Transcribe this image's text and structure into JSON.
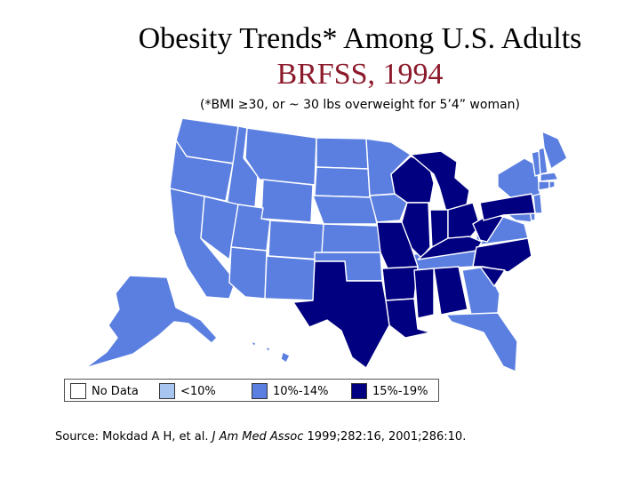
{
  "title": {
    "line1": "Obesity Trends* Among U.S. Adults",
    "line2": "BRFSS, 1994"
  },
  "subtitle": "(*BMI ≥30, or ~ 30 lbs overweight for 5’4” woman)",
  "colors": {
    "no_data": "#ffffff",
    "lt10": "#a8c4f0",
    "p10_14": "#5b7fe0",
    "p15_19": "#000080",
    "border": "#ffffff"
  },
  "legend": [
    {
      "label": "No Data",
      "color": "#ffffff"
    },
    {
      "label": "<10%",
      "color": "#a8c4f0"
    },
    {
      "label": "10%-14%",
      "color": "#5b7fe0"
    },
    {
      "label": "15%-19%",
      "color": "#000080"
    }
  ],
  "source": {
    "prefix": "Source: Mokdad A H, et al. ",
    "journal": "J Am Med Assoc",
    "suffix": " 1999;282:16, 2001;286:10."
  }
}
